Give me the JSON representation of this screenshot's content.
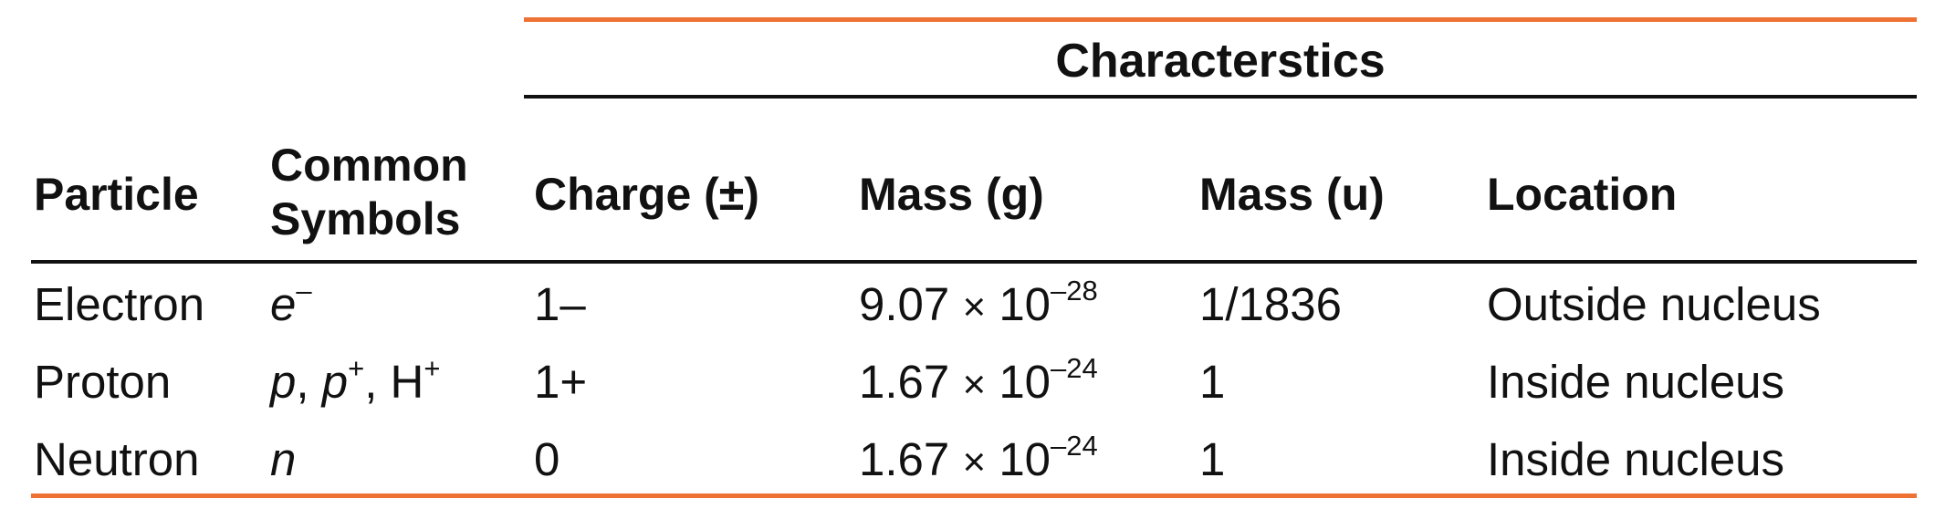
{
  "table": {
    "group_header": "Characterstics",
    "headers": {
      "particle": "Particle",
      "symbols_line1": "Common",
      "symbols_line2": "Symbols",
      "charge": "Charge (±)",
      "mass_g": "Mass (g)",
      "mass_u": "Mass (u)",
      "location": "Location"
    },
    "rows": [
      {
        "particle": "Electron",
        "symbol": {
          "base": "e",
          "sup": "–"
        },
        "charge": "1–",
        "mass_g": {
          "mantissa": "9.07",
          "times": "×",
          "base": "10",
          "exp": "–28"
        },
        "mass_u": "1/1836",
        "location": "Outside nucleus"
      },
      {
        "particle": "Proton",
        "symbol": {
          "a": "p",
          "sep1": ", ",
          "b": "p",
          "b_sup": "+",
          "sep2": ", ",
          "c": "H",
          "c_sup": "+"
        },
        "charge": "1+",
        "mass_g": {
          "mantissa": "1.67",
          "times": "×",
          "base": "10",
          "exp": "–24"
        },
        "mass_u": "1",
        "location": "Inside nucleus"
      },
      {
        "particle": "Neutron",
        "symbol": {
          "base": "n"
        },
        "charge": "0",
        "mass_g": {
          "mantissa": "1.67",
          "times": "×",
          "base": "10",
          "exp": "–24"
        },
        "mass_u": "1",
        "location": "Inside nucleus"
      }
    ],
    "colors": {
      "accent": "#ee7234",
      "rule": "#111111"
    }
  }
}
